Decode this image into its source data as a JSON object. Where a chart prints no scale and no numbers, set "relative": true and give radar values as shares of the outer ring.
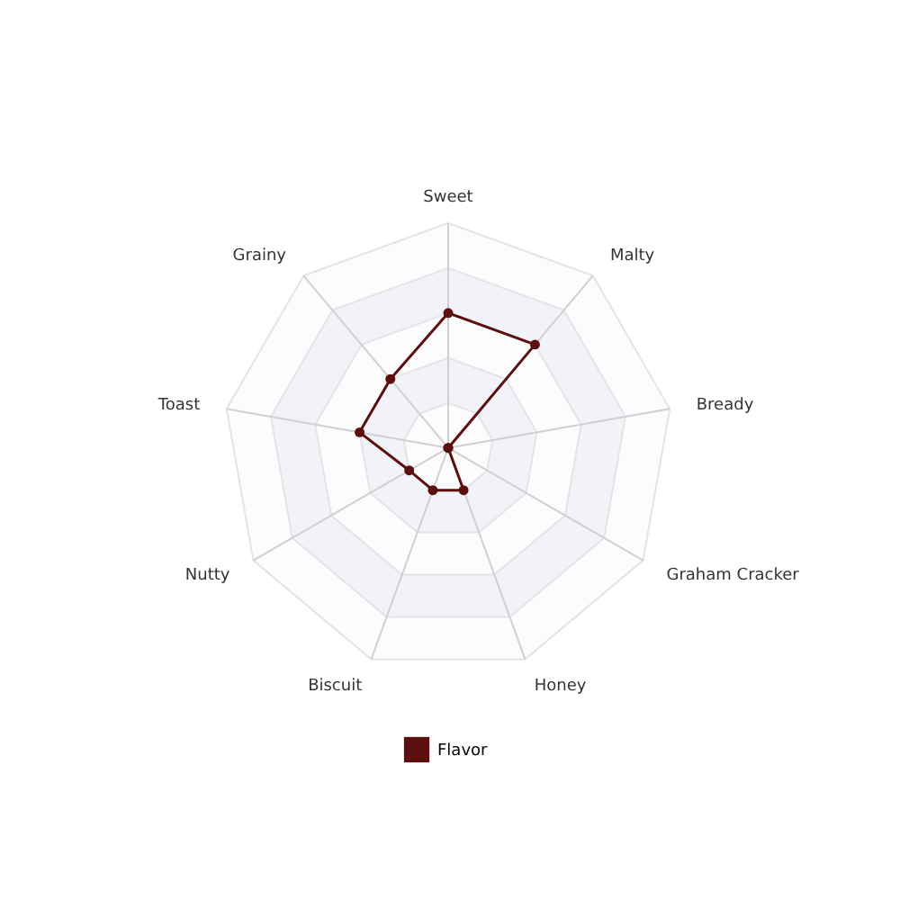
{
  "chart_data": {
    "type": "radar",
    "relative": true,
    "categories": [
      "Sweet",
      "Malty",
      "Bready",
      "Graham Cracker",
      "Honey",
      "Biscuit",
      "Nutty",
      "Toast",
      "Grainy"
    ],
    "series": [
      {
        "name": "Flavor",
        "color": "#5c0f0f",
        "values": [
          0.6,
          0.6,
          0,
          0,
          0.2,
          0.2,
          0.2,
          0.4,
          0.4
        ]
      }
    ],
    "grid": true,
    "legend": "bottom",
    "marker": "circle",
    "line_style": "solid"
  }
}
